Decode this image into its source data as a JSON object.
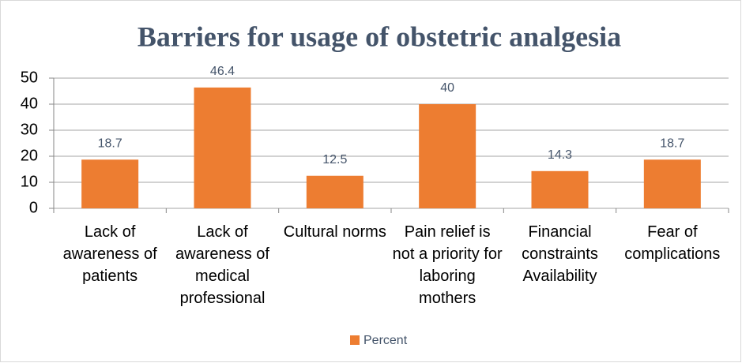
{
  "chart_data": {
    "type": "bar",
    "title": "Barriers for usage of obstetric analgesia",
    "categories": [
      "Lack of awareness of patients",
      "Lack of awareness of medical professional",
      "Cultural norms",
      "Pain relief is not a priority for laboring mothers",
      "Financial constraints Availability",
      "Fear of complications"
    ],
    "series": [
      {
        "name": "Percent",
        "color": "#ed7d31",
        "values": [
          18.7,
          46.4,
          12.5,
          40,
          14.3,
          18.7
        ]
      }
    ],
    "ylim": [
      0,
      50
    ],
    "yticks": [
      0,
      10,
      20,
      30,
      40,
      50
    ],
    "grid": true,
    "legend": "bottom"
  }
}
